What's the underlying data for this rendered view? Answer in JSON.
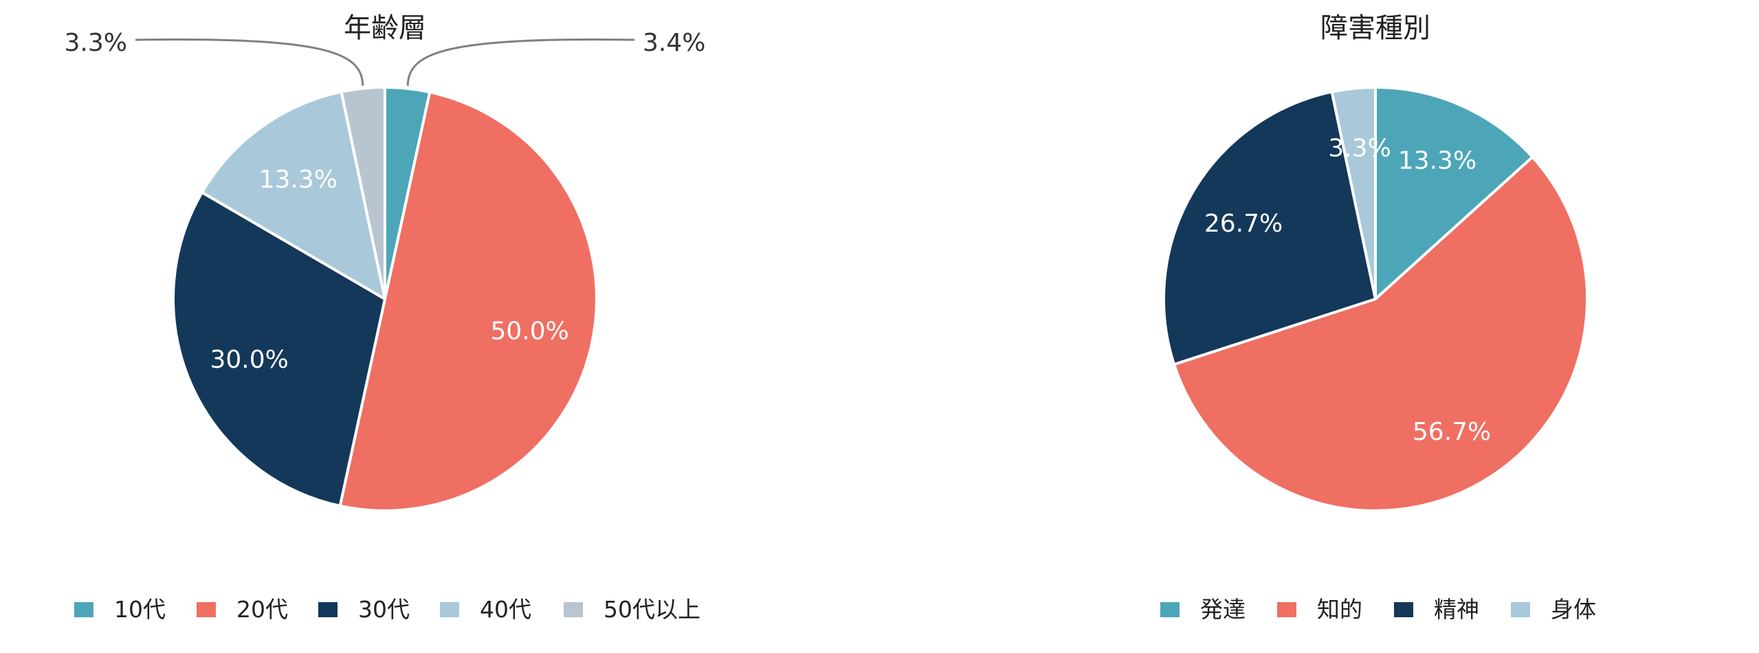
{
  "chart_data": [
    {
      "type": "pie",
      "title": "年齢層",
      "categories": [
        "10代",
        "20代",
        "30代",
        "40代",
        "50代以上"
      ],
      "values": [
        3.4,
        50.0,
        30.0,
        13.3,
        3.3
      ],
      "labels": [
        "3.4%",
        "50.0%",
        "30.0%",
        "13.3%",
        "3.3%"
      ],
      "colors": [
        "#4da6b8",
        "#ef6f62",
        "#14385a",
        "#a9c9da",
        "#b8c5d0"
      ],
      "start_angle_deg": 0,
      "direction": "clockwise",
      "legend_position": "bottom"
    },
    {
      "type": "pie",
      "title": "障害種別",
      "categories": [
        "発達",
        "知的",
        "精神",
        "身体"
      ],
      "values": [
        13.3,
        56.7,
        26.7,
        3.3
      ],
      "labels": [
        "13.3%",
        "56.7%",
        "26.7%",
        "3.3%"
      ],
      "colors": [
        "#4da6b8",
        "#ef6f62",
        "#14385a",
        "#a9c9da"
      ],
      "start_angle_deg": 0,
      "direction": "clockwise",
      "legend_position": "bottom"
    }
  ]
}
